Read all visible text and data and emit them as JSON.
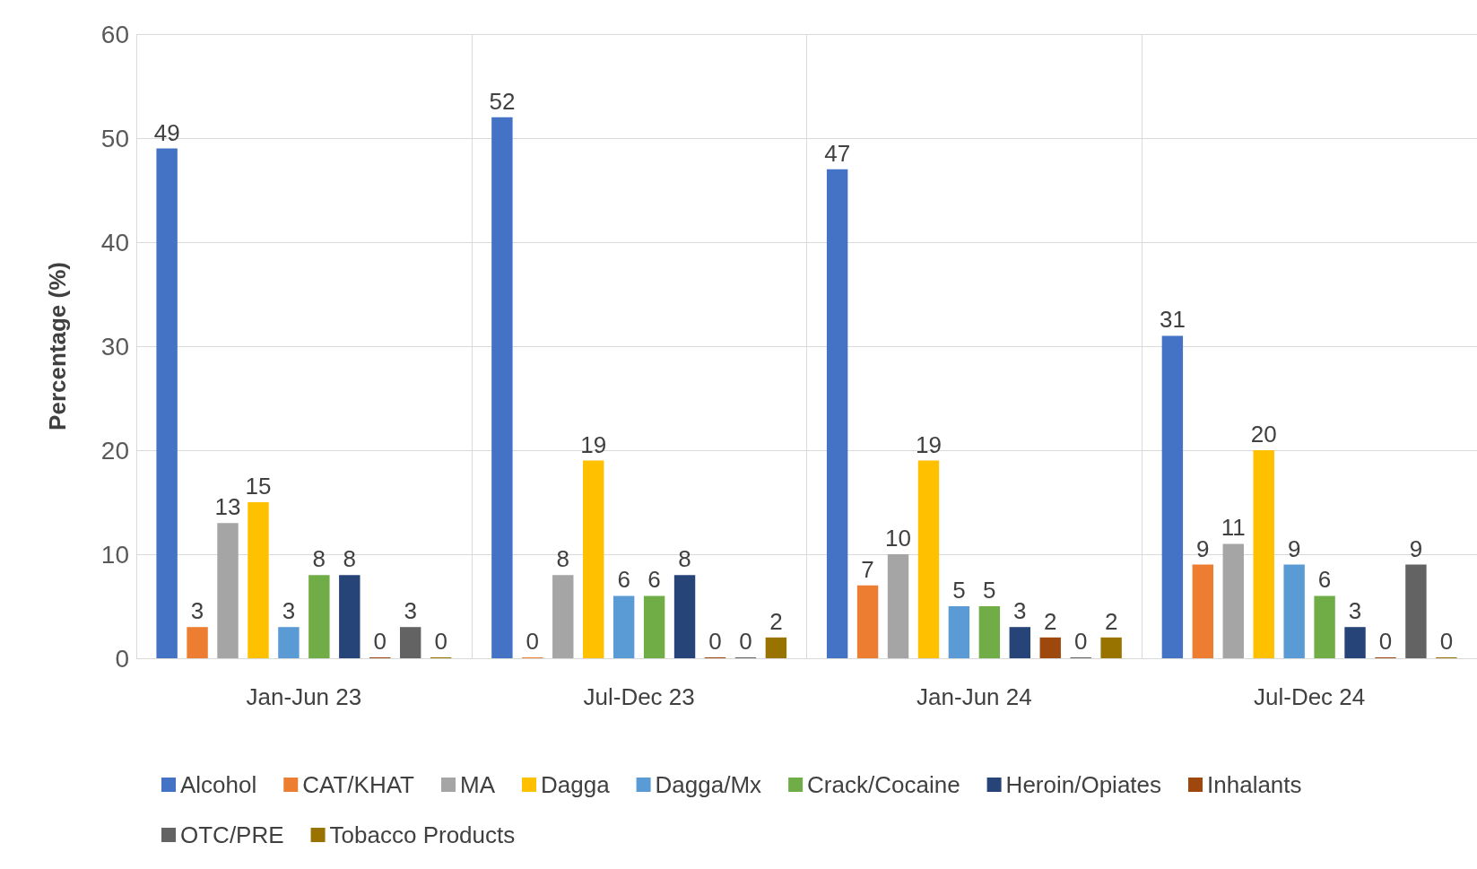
{
  "chart_data": {
    "type": "bar",
    "ylabel": "Percentage (%)",
    "categories": [
      "Jan-Jun 23",
      "Jul-Dec 23",
      "Jan-Jun 24",
      "Jul-Dec 24"
    ],
    "series": [
      {
        "name": "Alcohol",
        "color": "#4472c4",
        "values": [
          49,
          52,
          47,
          31
        ]
      },
      {
        "name": "CAT/KHAT",
        "color": "#ed7d31",
        "values": [
          3,
          0,
          7,
          9
        ]
      },
      {
        "name": "MA",
        "color": "#a5a5a5",
        "values": [
          13,
          8,
          10,
          11
        ]
      },
      {
        "name": "Dagga",
        "color": "#ffc000",
        "values": [
          15,
          19,
          19,
          20
        ]
      },
      {
        "name": "Dagga/Mx",
        "color": "#5b9bd5",
        "values": [
          3,
          6,
          5,
          9
        ]
      },
      {
        "name": "Crack/Cocaine",
        "color": "#70ad47",
        "values": [
          8,
          6,
          5,
          6
        ]
      },
      {
        "name": "Heroin/Opiates",
        "color": "#264478",
        "values": [
          8,
          8,
          3,
          3
        ]
      },
      {
        "name": "Inhalants",
        "color": "#9e480e",
        "values": [
          0,
          0,
          2,
          0
        ]
      },
      {
        "name": "OTC/PRE",
        "color": "#636363",
        "values": [
          3,
          0,
          0,
          9
        ]
      },
      {
        "name": "Tobacco Products",
        "color": "#997300",
        "values": [
          0,
          2,
          2,
          0
        ]
      }
    ],
    "ylim": [
      0,
      60
    ],
    "yticks": [
      0,
      10,
      20,
      30,
      40,
      50,
      60
    ],
    "grid": true,
    "legend": "bottom",
    "data_labels": true
  }
}
